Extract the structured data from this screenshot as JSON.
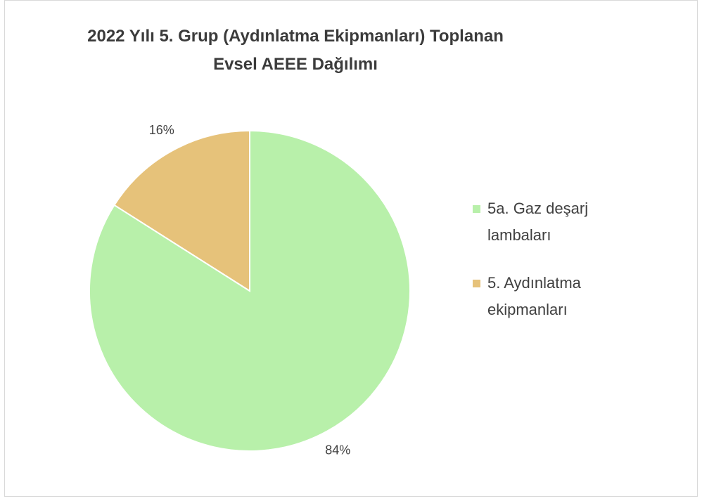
{
  "chart_data": {
    "type": "pie",
    "title": "2022 Yılı 5. Grup (Aydınlatma Ekipmanları) Toplanan Evsel AEEE Dağılımı",
    "categories": [
      "5a. Gaz deşarj lambaları",
      "5. Aydınlatma ekipmanları"
    ],
    "values": [
      84,
      16
    ],
    "value_labels": [
      "84%",
      "16%"
    ],
    "colors": [
      "#b8f0aa",
      "#e6c27a"
    ]
  }
}
